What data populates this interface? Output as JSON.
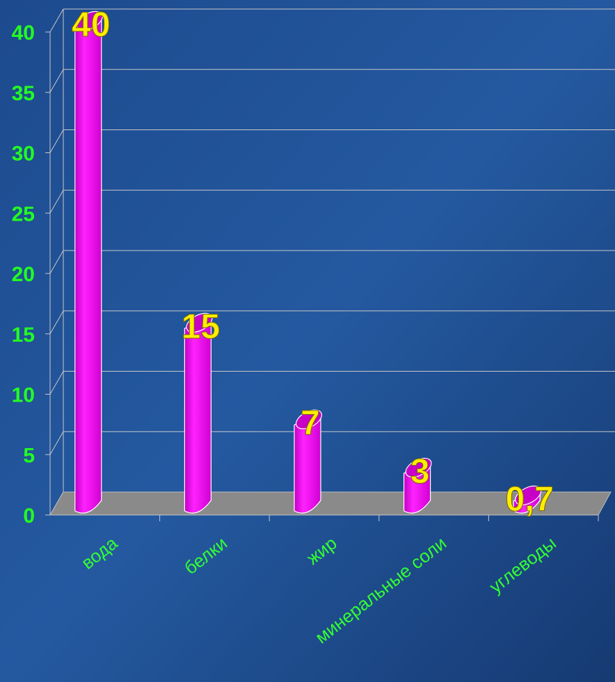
{
  "colors": {
    "background": "#1f4a8c",
    "bar": "#ff00ff",
    "bar_shade": "#c800c8",
    "floor": "#8a8a8a",
    "gridline": "#c8c8c8",
    "axis_text": "#22ff22",
    "category_text": "#33ff33",
    "data_label": "#ffee00"
  },
  "chart_data": {
    "type": "bar",
    "categories": [
      "вода",
      "белки",
      "жир",
      "минеральные соли",
      "углеводы"
    ],
    "values": [
      40,
      15,
      7,
      3,
      0.7
    ],
    "data_labels": [
      "40",
      "15",
      "7",
      "3",
      "0,7"
    ],
    "yticks": [
      "0",
      "5",
      "10",
      "15",
      "20",
      "25",
      "30",
      "35",
      "40"
    ],
    "ylim": [
      0,
      40
    ],
    "grid": true,
    "legend": "none"
  }
}
